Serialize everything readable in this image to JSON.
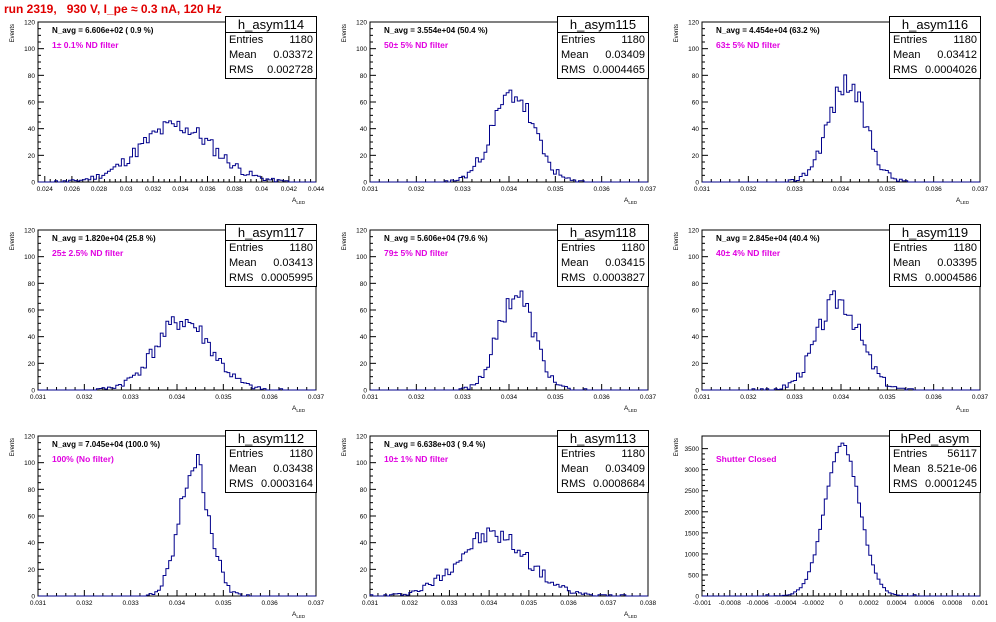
{
  "title": "run 2319,   930 V, I_pe ≈ 0.3 nA, 120 Hz",
  "stat_labels": {
    "entries": "Entries",
    "mean": "Mean",
    "rms": "RMS"
  },
  "colors": {
    "histogram": "#00008b",
    "annotation": "#e000e0",
    "title": "#e00000"
  },
  "chart_data": [
    {
      "type": "histogram",
      "name": "h_asym114",
      "entries": "1180",
      "mean": "0.03372",
      "rms": "0.002728",
      "navg": "N_avg = 6.606e+02 ( 0.9 %)",
      "filter": "1± 0.1% ND filter",
      "ylabel": "Events",
      "xlabel": "A_LED",
      "xlim": [
        0.0235,
        0.044
      ],
      "ylim": [
        0,
        120
      ],
      "xticks": [
        0.024,
        0.026,
        0.028,
        0.03,
        0.032,
        0.034,
        0.036,
        0.038,
        0.04,
        0.042,
        0.044
      ],
      "xticklabels": [
        "0.024",
        "0.026",
        "0.028",
        "0.03",
        "0.032",
        "0.034",
        "0.036",
        "0.038",
        "0.04",
        "0.042",
        "0.044"
      ],
      "yticks": [
        0,
        20,
        40,
        60,
        80,
        100,
        120
      ],
      "shape": "normal",
      "amp": 42,
      "seed": 11
    },
    {
      "type": "histogram",
      "name": "h_asym115",
      "entries": "1180",
      "mean": "0.03409",
      "rms": "0.0004465",
      "navg": "N_avg = 3.554e+04 (50.4 %)",
      "filter": "50± 5% ND filter",
      "ylabel": "Events",
      "xlabel": "A_LED",
      "xlim": [
        0.031,
        0.037
      ],
      "ylim": [
        0,
        120
      ],
      "xticks": [
        0.031,
        0.032,
        0.033,
        0.034,
        0.035,
        0.036,
        0.037
      ],
      "xticklabels": [
        "0.031",
        "0.032",
        "0.033",
        "0.034",
        "0.035",
        "0.036",
        "0.037"
      ],
      "yticks": [
        0,
        20,
        40,
        60,
        80,
        100,
        120
      ],
      "shape": "normal",
      "amp": 66,
      "seed": 23
    },
    {
      "type": "histogram",
      "name": "h_asym116",
      "entries": "1180",
      "mean": "0.03412",
      "rms": "0.0004026",
      "navg": "N_avg = 4.454e+04 (63.2 %)",
      "filter": "63± 5% ND filter",
      "ylabel": "Events",
      "xlabel": "A_LED",
      "xlim": [
        0.031,
        0.037
      ],
      "ylim": [
        0,
        120
      ],
      "xticks": [
        0.031,
        0.032,
        0.033,
        0.034,
        0.035,
        0.036,
        0.037
      ],
      "xticklabels": [
        "0.031",
        "0.032",
        "0.033",
        "0.034",
        "0.035",
        "0.036",
        "0.037"
      ],
      "yticks": [
        0,
        20,
        40,
        60,
        80,
        100,
        120
      ],
      "shape": "normal",
      "amp": 74,
      "seed": 37
    },
    {
      "type": "histogram",
      "name": "h_asym117",
      "entries": "1180",
      "mean": "0.03413",
      "rms": "0.0005995",
      "navg": "N_avg = 1.820e+04 (25.8 %)",
      "filter": "25± 2.5% ND filter",
      "ylabel": "Events",
      "xlabel": "A_LED",
      "xlim": [
        0.031,
        0.037
      ],
      "ylim": [
        0,
        120
      ],
      "xticks": [
        0.031,
        0.032,
        0.033,
        0.034,
        0.035,
        0.036,
        0.037
      ],
      "xticklabels": [
        "0.031",
        "0.032",
        "0.033",
        "0.034",
        "0.035",
        "0.036",
        "0.037"
      ],
      "yticks": [
        0,
        20,
        40,
        60,
        80,
        100,
        120
      ],
      "shape": "normal",
      "amp": 52,
      "seed": 41
    },
    {
      "type": "histogram",
      "name": "h_asym118",
      "entries": "1180",
      "mean": "0.03415",
      "rms": "0.0003827",
      "navg": "N_avg = 5.606e+04 (79.6 %)",
      "filter": "79± 5% ND filter",
      "ylabel": "Events",
      "xlabel": "A_LED",
      "xlim": [
        0.031,
        0.037
      ],
      "ylim": [
        0,
        120
      ],
      "xticks": [
        0.031,
        0.032,
        0.033,
        0.034,
        0.035,
        0.036,
        0.037
      ],
      "xticklabels": [
        "0.031",
        "0.032",
        "0.033",
        "0.034",
        "0.035",
        "0.036",
        "0.037"
      ],
      "yticks": [
        0,
        20,
        40,
        60,
        80,
        100,
        120
      ],
      "shape": "normal",
      "amp": 72,
      "seed": 53
    },
    {
      "type": "histogram",
      "name": "h_asym119",
      "entries": "1180",
      "mean": "0.03395",
      "rms": "0.0004586",
      "navg": "N_avg = 2.845e+04 (40.4 %)",
      "filter": "40± 4% ND filter",
      "ylabel": "Events",
      "xlabel": "A_LED",
      "xlim": [
        0.031,
        0.037
      ],
      "ylim": [
        0,
        120
      ],
      "xticks": [
        0.031,
        0.032,
        0.033,
        0.034,
        0.035,
        0.036,
        0.037
      ],
      "xticklabels": [
        "0.031",
        "0.032",
        "0.033",
        "0.034",
        "0.035",
        "0.036",
        "0.037"
      ],
      "yticks": [
        0,
        20,
        40,
        60,
        80,
        100,
        120
      ],
      "shape": "normal",
      "amp": 68,
      "seed": 67
    },
    {
      "type": "histogram",
      "name": "h_asym112",
      "entries": "1180",
      "mean": "0.03438",
      "rms": "0.0003164",
      "navg": "N_avg = 7.045e+04 (100.0 %)",
      "filter": "100% (No filter)",
      "ylabel": "Events",
      "xlabel": "A_LED",
      "xlim": [
        0.031,
        0.037
      ],
      "ylim": [
        0,
        120
      ],
      "xticks": [
        0.031,
        0.032,
        0.033,
        0.034,
        0.035,
        0.036,
        0.037
      ],
      "xticklabels": [
        "0.031",
        "0.032",
        "0.033",
        "0.034",
        "0.035",
        "0.036",
        "0.037"
      ],
      "yticks": [
        0,
        20,
        40,
        60,
        80,
        100,
        120
      ],
      "shape": "normal",
      "amp": 100,
      "seed": 79
    },
    {
      "type": "histogram",
      "name": "h_asym113",
      "entries": "1180",
      "mean": "0.03409",
      "rms": "0.0008684",
      "navg": "N_avg = 6.638e+03 ( 9.4 %)",
      "filter": "10± 1% ND filter",
      "ylabel": "Events",
      "xlabel": "A_LED",
      "xlim": [
        0.031,
        0.038
      ],
      "ylim": [
        0,
        120
      ],
      "xticks": [
        0.031,
        0.032,
        0.033,
        0.034,
        0.035,
        0.036,
        0.037,
        0.038
      ],
      "xticklabels": [
        "0.031",
        "0.032",
        "0.033",
        "0.034",
        "0.035",
        "0.036",
        "0.037",
        "0.038"
      ],
      "yticks": [
        0,
        20,
        40,
        60,
        80,
        100,
        120
      ],
      "shape": "normal",
      "amp": 46,
      "seed": 97
    },
    {
      "type": "histogram",
      "name": "hPed_asym",
      "entries": "56117",
      "mean": "8.521e-06",
      "rms": "0.0001245",
      "navg": "",
      "filter": "Shutter Closed",
      "ylabel": "Events",
      "xlabel": "",
      "xlim": [
        -0.001,
        0.001
      ],
      "ylim": [
        0,
        3800
      ],
      "xticks": [
        -0.001,
        -0.0008,
        -0.0006,
        -0.0004,
        -0.0002,
        0,
        0.0002,
        0.0004,
        0.0006,
        0.0008,
        0.001
      ],
      "xticklabels": [
        "-0.001",
        "-0.0008",
        "-0.0006",
        "-0.0004",
        "-0.0002",
        "0",
        "0.0002",
        "0.0004",
        "0.0006",
        "0.0008",
        "0.001"
      ],
      "yticks": [
        0,
        500,
        1000,
        1500,
        2000,
        2500,
        3000,
        3500
      ],
      "shape": "normal",
      "amp": 3580,
      "seed": 101
    }
  ]
}
